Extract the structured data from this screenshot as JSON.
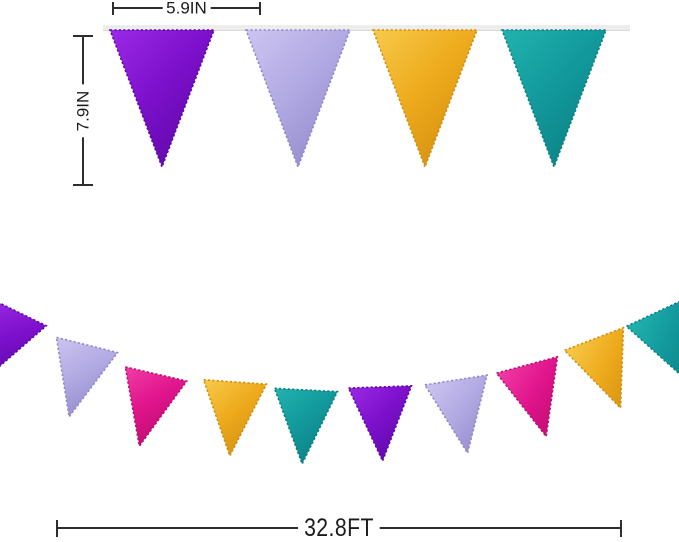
{
  "dimensions": {
    "flag_width_label": "5.9IN",
    "flag_height_label": "7.9IN",
    "total_length_label": "32.8FT"
  },
  "line_color": "#2e2e2e",
  "ribbon_color": "#ededed",
  "ribbon_shadow_color": "#d9d9d9",
  "palette": {
    "purple": {
      "light": "#9a2ae4",
      "base": "#7d10cc",
      "dark": "#5c07a4"
    },
    "lavender": {
      "light": "#ccc5f1",
      "base": "#b2aae3",
      "dark": "#9189c9"
    },
    "magenta": {
      "light": "#f23da6",
      "base": "#e0148c",
      "dark": "#b90d6d"
    },
    "gold": {
      "light": "#f7ca4b",
      "base": "#eeab1d",
      "dark": "#d18d0e"
    },
    "teal": {
      "light": "#22b3ae",
      "base": "#12999c",
      "dark": "#0c7f83"
    }
  },
  "top_banner": {
    "flag_sequence": [
      "purple",
      "lavender",
      "gold",
      "teal"
    ]
  },
  "bottom_banner": {
    "flag_sequence": [
      "purple",
      "lavender",
      "magenta",
      "gold",
      "teal",
      "purple",
      "lavender",
      "magenta",
      "gold",
      "teal"
    ]
  }
}
